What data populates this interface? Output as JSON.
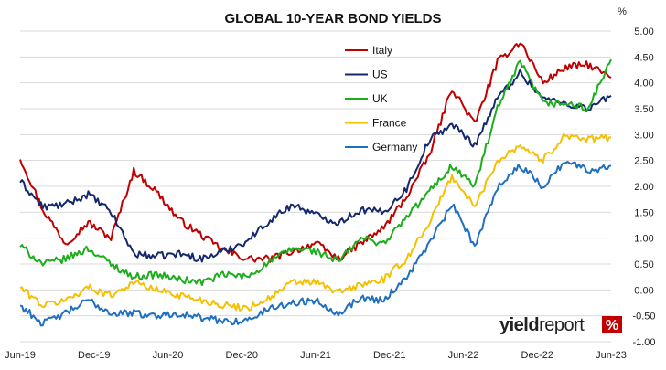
{
  "chart_data": {
    "type": "line",
    "title": "GLOBAL 10-YEAR BOND YIELDS",
    "unit": "%",
    "ylim": [
      -1.0,
      5.0
    ],
    "y_ticks": [
      "5.00",
      "4.50",
      "4.00",
      "3.50",
      "3.00",
      "2.50",
      "2.00",
      "1.50",
      "1.00",
      "0.50",
      "0.00",
      "-0.50",
      "-1.00"
    ],
    "x_ticks": [
      "Jun-19",
      "Dec-19",
      "Jun-20",
      "Dec-20",
      "Jun-21",
      "Dec-21",
      "Jun-22",
      "Dec-22",
      "Jun-23"
    ],
    "grid": "horizontal",
    "legend_position": "top-center",
    "x": [
      "Jun-19",
      "Aug-19",
      "Oct-19",
      "Dec-19",
      "Feb-20",
      "Mar-20",
      "Apr-20",
      "Jun-20",
      "Aug-20",
      "Oct-20",
      "Dec-20",
      "Feb-21",
      "Apr-21",
      "Jun-21",
      "Aug-21",
      "Oct-21",
      "Dec-21",
      "Feb-22",
      "Apr-22",
      "Jun-22",
      "Jul-22",
      "Sep-22",
      "Oct-22",
      "Dec-22",
      "Feb-23",
      "Apr-23",
      "Jun-23"
    ],
    "series": [
      {
        "name": "Italy",
        "color": "#c00000",
        "values": [
          2.55,
          1.55,
          0.9,
          1.3,
          1.0,
          2.3,
          1.9,
          1.35,
          1.05,
          0.75,
          0.6,
          0.6,
          0.75,
          0.9,
          0.6,
          0.9,
          1.2,
          1.8,
          2.6,
          3.9,
          3.2,
          4.4,
          4.8,
          4.0,
          4.3,
          4.35,
          4.1
        ]
      },
      {
        "name": "US",
        "color": "#14286e",
        "values": [
          2.1,
          1.6,
          1.65,
          1.85,
          1.5,
          0.7,
          0.65,
          0.7,
          0.6,
          0.75,
          0.95,
          1.35,
          1.65,
          1.45,
          1.3,
          1.55,
          1.5,
          1.95,
          2.9,
          3.2,
          2.8,
          3.7,
          4.2,
          3.7,
          3.6,
          3.5,
          3.75
        ]
      },
      {
        "name": "UK",
        "color": "#1cad1c",
        "values": [
          0.85,
          0.5,
          0.6,
          0.8,
          0.5,
          0.25,
          0.3,
          0.2,
          0.15,
          0.3,
          0.25,
          0.55,
          0.8,
          0.75,
          0.55,
          1.0,
          0.9,
          1.4,
          1.9,
          2.4,
          2.0,
          3.5,
          4.4,
          3.6,
          3.6,
          3.5,
          4.45
        ]
      },
      {
        "name": "France",
        "color": "#f5c000",
        "values": [
          0.05,
          -0.3,
          -0.2,
          0.05,
          -0.1,
          0.15,
          0.0,
          -0.1,
          -0.2,
          -0.3,
          -0.35,
          -0.15,
          0.15,
          0.15,
          -0.05,
          0.1,
          0.2,
          0.6,
          1.3,
          2.2,
          1.6,
          2.5,
          2.8,
          2.5,
          3.0,
          2.9,
          2.95
        ]
      },
      {
        "name": "Germany",
        "color": "#1f6fc0",
        "values": [
          -0.3,
          -0.65,
          -0.45,
          -0.2,
          -0.45,
          -0.45,
          -0.5,
          -0.45,
          -0.55,
          -0.6,
          -0.6,
          -0.35,
          -0.25,
          -0.2,
          -0.45,
          -0.15,
          -0.2,
          0.25,
          0.9,
          1.65,
          0.85,
          2.0,
          2.4,
          2.0,
          2.5,
          2.3,
          2.4
        ]
      }
    ]
  },
  "branding": {
    "logo_main": "yield",
    "logo_light": "report",
    "logo_mark": "%"
  }
}
